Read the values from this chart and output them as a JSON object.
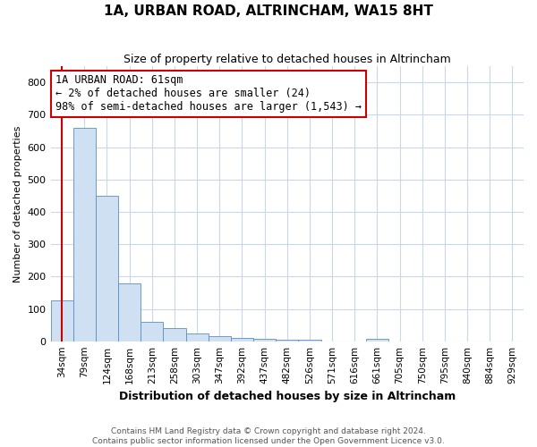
{
  "title": "1A, URBAN ROAD, ALTRINCHAM, WA15 8HT",
  "subtitle": "Size of property relative to detached houses in Altrincham",
  "xlabel": "Distribution of detached houses by size in Altrincham",
  "ylabel": "Number of detached properties",
  "footer_line1": "Contains HM Land Registry data © Crown copyright and database right 2024.",
  "footer_line2": "Contains public sector information licensed under the Open Government Licence v3.0.",
  "annotation_line1": "1A URBAN ROAD: 61sqm",
  "annotation_line2": "← 2% of detached houses are smaller (24)",
  "annotation_line3": "98% of semi-detached houses are larger (1,543) →",
  "categories": [
    "34sqm",
    "79sqm",
    "124sqm",
    "168sqm",
    "213sqm",
    "258sqm",
    "303sqm",
    "347sqm",
    "392sqm",
    "437sqm",
    "482sqm",
    "526sqm",
    "571sqm",
    "616sqm",
    "661sqm",
    "705sqm",
    "750sqm",
    "795sqm",
    "840sqm",
    "884sqm",
    "929sqm"
  ],
  "values": [
    125,
    660,
    450,
    180,
    60,
    40,
    25,
    15,
    10,
    8,
    6,
    5,
    0,
    0,
    8,
    0,
    0,
    0,
    0,
    0,
    0
  ],
  "bar_color": "#cfe0f2",
  "bar_edge_color": "#5b8ec4",
  "highlight_color": "#cc0000",
  "vertical_line_x": 0.0,
  "ylim": [
    0,
    850
  ],
  "yticks": [
    0,
    100,
    200,
    300,
    400,
    500,
    600,
    700,
    800
  ],
  "annotation_box_color": "white",
  "annotation_box_edge": "#cc0000",
  "grid_color": "#c8d8e8",
  "background_color": "#ffffff",
  "title_fontsize": 11,
  "subtitle_fontsize": 9,
  "ylabel_fontsize": 8,
  "xlabel_fontsize": 9,
  "tick_fontsize": 8,
  "xtick_fontsize": 7.5,
  "annotation_fontsize": 8.5
}
